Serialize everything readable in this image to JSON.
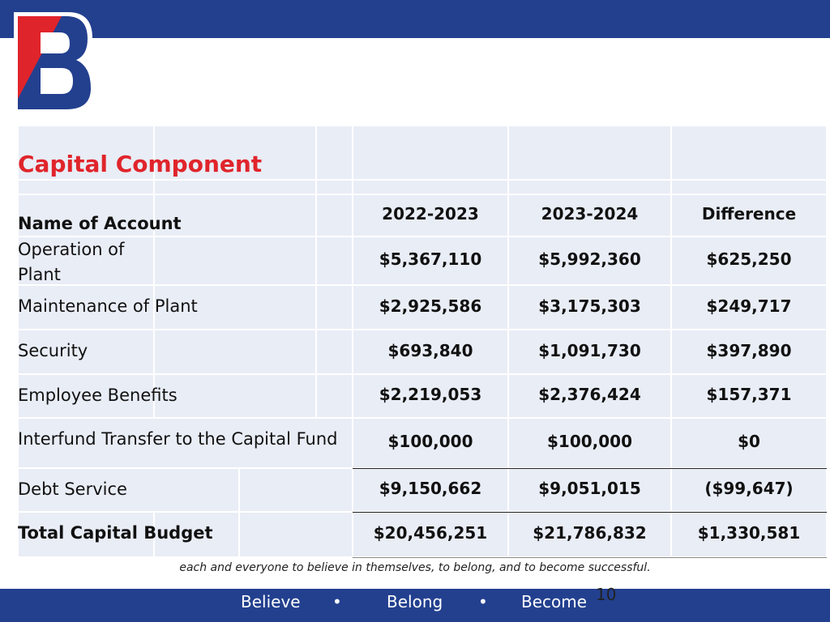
{
  "header": {
    "title": "Capital Component"
  },
  "table": {
    "columns": [
      "Name of Account",
      "2022-2023",
      "2023-2024",
      "Difference"
    ],
    "rows": [
      [
        "Operation of Plant",
        "$5,367,110",
        "$5,992,360",
        "$625,250"
      ],
      [
        "Maintenance of Plant",
        "$2,925,586",
        "$3,175,303",
        "$249,717"
      ],
      [
        "Security",
        "$693,840",
        "$1,091,730",
        "$397,890"
      ],
      [
        "Employee Benefits",
        "$2,219,053",
        "$2,376,424",
        "$157,371"
      ],
      [
        "Interfund Transfer to the Capital Fund",
        "$100,000",
        "$100,000",
        "$0"
      ],
      [
        "Debt Service",
        "$9,150,662",
        "$9,051,015",
        "($99,647)"
      ],
      [
        "Total Capital Budget",
        "$20,456,251",
        "$21,786,832",
        "$1,330,581"
      ]
    ]
  },
  "caption": "each and everyone to believe in themselves, to belong, and to become successful.",
  "footer": {
    "items": [
      "Believe",
      "•",
      "Belong",
      "•",
      "Become"
    ],
    "page": "10"
  }
}
